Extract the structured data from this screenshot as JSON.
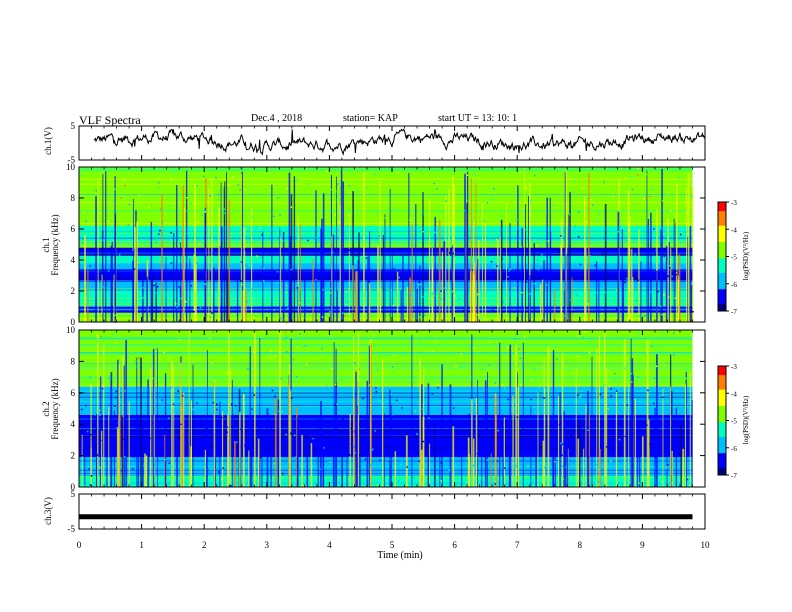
{
  "header": {
    "title": "VLF Spectra",
    "date": "Dec.4 , 2018",
    "station": "station= KAP",
    "start": "start  UT =   13: 10: 1"
  },
  "panels": {
    "ch1_wave_label": "ch.1(V)",
    "ch1_spec_label_1": "ch.1",
    "ch1_spec_label_2": "Frequency (kHz)",
    "ch2_spec_label_1": "ch.2",
    "ch2_spec_label_2": "Frequency (kHz)",
    "ch3_wave_label": "ch.3(V)"
  },
  "colorbar": {
    "label": "log(PSD)(V²/Hz)",
    "ticks": [
      "-3",
      "-4",
      "-5",
      "-6",
      "-7"
    ],
    "range": [
      -7,
      -3
    ]
  },
  "colors": {
    "background": "#ffffff",
    "axis": "#000000",
    "colormap": [
      "#00007f",
      "#0000ff",
      "#00bfff",
      "#00ffbf",
      "#7fff00",
      "#ffff00",
      "#ff7f00",
      "#ff0000",
      "#ffffff"
    ]
  },
  "chart_data": [
    {
      "type": "line",
      "name": "ch1 waveform",
      "ylabel": "ch.1(V)",
      "ylim": [
        -5,
        5
      ],
      "yticks": [
        "5",
        "-5"
      ],
      "xlim": [
        0,
        10
      ],
      "approx_mean": 0.5,
      "approx_range": [
        -3.5,
        4
      ]
    },
    {
      "type": "heatmap",
      "name": "ch1 spectrogram",
      "ylabel": "Frequency (kHz)",
      "ylim": [
        0,
        10
      ],
      "yticks": [
        "0",
        "2",
        "4",
        "6",
        "8",
        "10"
      ],
      "xlim": [
        0,
        9.8
      ],
      "bands": [
        {
          "from": 0,
          "to": 0.6,
          "level": -4.8
        },
        {
          "from": 0.6,
          "to": 1.0,
          "level": -6.2
        },
        {
          "from": 1.0,
          "to": 2.0,
          "level": -5.1
        },
        {
          "from": 2.0,
          "to": 2.6,
          "level": -5.6
        },
        {
          "from": 2.6,
          "to": 3.4,
          "level": -6.6
        },
        {
          "from": 3.4,
          "to": 3.8,
          "level": -6.0
        },
        {
          "from": 3.8,
          "to": 4.3,
          "level": -5.5
        },
        {
          "from": 4.3,
          "to": 4.8,
          "level": -6.5
        },
        {
          "from": 4.8,
          "to": 5.2,
          "level": -4.9
        },
        {
          "from": 5.2,
          "to": 6.2,
          "level": -5.4
        },
        {
          "from": 6.2,
          "to": 10.0,
          "level": -4.9
        }
      ]
    },
    {
      "type": "heatmap",
      "name": "ch2 spectrogram",
      "ylabel": "Frequency (kHz)",
      "ylim": [
        0,
        10
      ],
      "yticks": [
        "0",
        "2",
        "4",
        "6",
        "8",
        "10"
      ],
      "xlim": [
        0,
        9.8
      ],
      "bands": [
        {
          "from": 0,
          "to": 0.7,
          "level": -5.3
        },
        {
          "from": 0.7,
          "to": 1.3,
          "level": -6.0
        },
        {
          "from": 1.3,
          "to": 1.9,
          "level": -5.6
        },
        {
          "from": 1.9,
          "to": 3.3,
          "level": -6.7
        },
        {
          "from": 3.3,
          "to": 4.6,
          "level": -6.4
        },
        {
          "from": 4.6,
          "to": 5.1,
          "level": -5.6
        },
        {
          "from": 5.1,
          "to": 6.4,
          "level": -6.1
        },
        {
          "from": 6.4,
          "to": 10.0,
          "level": -4.9
        }
      ]
    },
    {
      "type": "line",
      "name": "ch3 waveform",
      "ylabel": "ch.3(V)",
      "ylim": [
        -5,
        5
      ],
      "yticks": [
        "5",
        "-5"
      ],
      "xlim": [
        0,
        9.8
      ],
      "value": -1.5
    }
  ],
  "xaxis": {
    "label": "Time (min)",
    "ticks": [
      "0",
      "1",
      "2",
      "3",
      "4",
      "5",
      "6",
      "7",
      "8",
      "9",
      "10"
    ],
    "xlim": [
      0,
      10
    ]
  }
}
